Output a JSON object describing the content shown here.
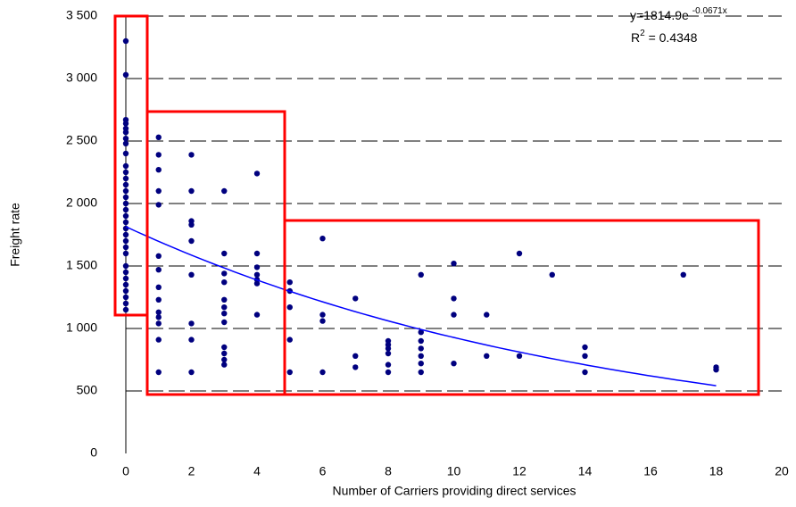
{
  "chart_data": {
    "type": "scatter",
    "x_label": "Number of Carriers providing direct services",
    "y_label": "Freight rate",
    "color": "#00007f",
    "grid": true,
    "xlim": [
      0,
      20
    ],
    "xticks": [
      0,
      2,
      4,
      6,
      8,
      10,
      12,
      14,
      16,
      18,
      20
    ],
    "ylim": [
      0,
      3500
    ],
    "yticks": [
      0,
      500,
      {
        "value": 1000,
        "label": "1 000"
      },
      {
        "value": 1500,
        "label": "1 500"
      },
      {
        "value": 2000,
        "label": "2 000"
      },
      {
        "value": 2500,
        "label": "2 500"
      },
      {
        "value": 3000,
        "label": "3 000"
      },
      {
        "value": 3500,
        "label": "3 500"
      }
    ],
    "x": [
      0,
      0,
      0,
      0,
      0,
      0,
      0,
      0,
      0,
      0,
      0,
      0,
      0,
      0,
      0,
      0,
      0,
      0,
      0,
      0,
      0,
      0,
      0,
      0,
      0,
      0,
      0,
      0,
      0,
      0,
      0,
      0,
      1,
      1,
      1,
      1,
      1,
      1,
      1,
      1,
      1,
      1,
      1,
      1,
      1,
      1,
      2,
      2,
      2,
      2,
      2,
      2,
      2,
      2,
      2,
      3,
      3,
      3,
      3,
      3,
      3,
      3,
      3,
      3,
      3,
      3,
      3,
      4,
      4,
      4,
      4,
      4,
      4,
      4,
      5,
      5,
      5,
      5,
      5,
      6,
      6,
      6,
      6,
      7,
      7,
      7,
      8,
      8,
      8,
      8,
      8,
      8,
      9,
      9,
      9,
      9,
      9,
      9,
      9,
      10,
      10,
      10,
      10,
      11,
      11,
      12,
      12,
      13,
      14,
      14,
      14,
      17,
      18,
      18
    ],
    "values": [
      3300,
      3030,
      2670,
      2640,
      2600,
      2570,
      2520,
      2480,
      2400,
      2300,
      2250,
      2200,
      2150,
      2100,
      2050,
      2000,
      1950,
      1900,
      1850,
      1800,
      1750,
      1700,
      1650,
      1600,
      1500,
      1450,
      1400,
      1350,
      1300,
      1250,
      1200,
      1150,
      2530,
      2390,
      2270,
      2100,
      1990,
      1580,
      1470,
      1330,
      1230,
      1130,
      1090,
      1040,
      910,
      650,
      2390,
      2100,
      1860,
      1830,
      1700,
      1430,
      1040,
      910,
      650,
      2100,
      1600,
      1440,
      1370,
      1230,
      1170,
      1120,
      1050,
      850,
      800,
      750,
      710,
      2240,
      1600,
      1490,
      1430,
      1390,
      1360,
      1110,
      1370,
      1300,
      1170,
      910,
      650,
      1720,
      1110,
      1060,
      650,
      1240,
      780,
      690,
      900,
      870,
      840,
      800,
      710,
      650,
      1430,
      970,
      900,
      840,
      780,
      720,
      650,
      1520,
      1240,
      1110,
      720,
      1110,
      780,
      1600,
      780,
      1430,
      850,
      780,
      650,
      1430,
      690,
      670
    ],
    "trendline": {
      "equation": "y=1814.9e",
      "exponent": "-0.0671x",
      "r_label": "R",
      "r_sup": "2",
      "r_value": " = 0.4348",
      "coefficient": 1814.9,
      "rate": -0.0671,
      "x_range": [
        0,
        18
      ],
      "color": "#0000ff"
    }
  }
}
